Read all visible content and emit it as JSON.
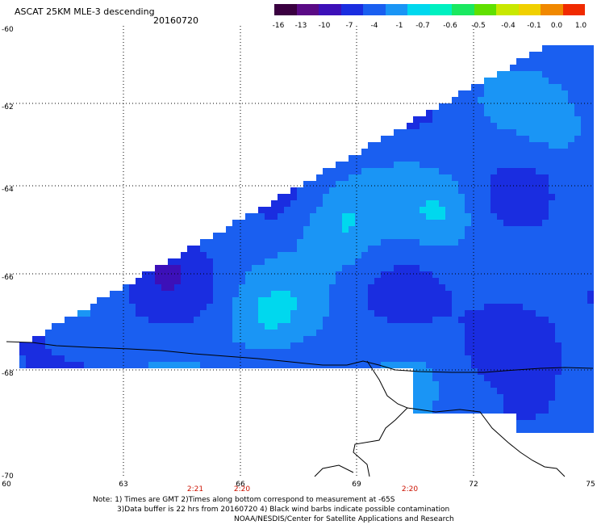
{
  "title": "ASCAT 25KM MLE-3 descending",
  "date": "20160720",
  "colorbar": {
    "colors": [
      "#3a0040",
      "#5a0a85",
      "#3c10b8",
      "#1a2de0",
      "#1a5ff0",
      "#1a95f5",
      "#00d8ee",
      "#00f0c0",
      "#1ae860",
      "#60e000",
      "#c8e800",
      "#f0d000",
      "#f08800",
      "#f02a00"
    ],
    "tick_labels": [
      "-16",
      "-13",
      "-10",
      "-7",
      "-4",
      "-1",
      "-0.7",
      "-0.6",
      "-0.5",
      "-0.4",
      "-0.1",
      "0.0",
      "1.0"
    ]
  },
  "axes": {
    "lat_labels": [
      "-60",
      "-62",
      "-64",
      "-66",
      "-68",
      "-70"
    ],
    "lon_labels": [
      "60",
      "63",
      "66",
      "69",
      "72",
      "75"
    ]
  },
  "times": [
    "2:21",
    "2:20",
    "2:20"
  ],
  "notes": [
    "Note: 1) Times are GMT 2)Times along bottom correspond to measurement at -65S",
    "3)Data buffer is 22 hrs from 20160720 4) Black wind barbs indicate possible contamination",
    "NOAA/NESDIS/Center for Satellite Applications and Research"
  ]
}
